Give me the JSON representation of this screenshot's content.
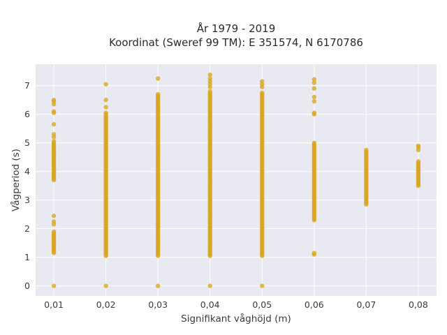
{
  "chart_data": {
    "type": "scatter",
    "title_line1": "År 1979 - 2019",
    "title_line2": "Koordinat (Sweref 99 TM): E 351574, N 6170786",
    "xlabel": "Signifikant våghöjd (m)",
    "ylabel": "Vågperiod (s)",
    "xlim": [
      0.0065,
      0.0835
    ],
    "ylim": [
      -0.35,
      7.75
    ],
    "x_ticks": [
      {
        "value": 0.01,
        "label": "0,01"
      },
      {
        "value": 0.02,
        "label": "0,02"
      },
      {
        "value": 0.03,
        "label": "0,03"
      },
      {
        "value": 0.04,
        "label": "0,04"
      },
      {
        "value": 0.05,
        "label": "0,05"
      },
      {
        "value": 0.06,
        "label": "0,06"
      },
      {
        "value": 0.07,
        "label": "0,07"
      },
      {
        "value": 0.08,
        "label": "0,08"
      }
    ],
    "y_ticks": [
      {
        "value": 0,
        "label": "0"
      },
      {
        "value": 1,
        "label": "1"
      },
      {
        "value": 2,
        "label": "2"
      },
      {
        "value": 3,
        "label": "3"
      },
      {
        "value": 4,
        "label": "4"
      },
      {
        "value": 5,
        "label": "5"
      },
      {
        "value": 6,
        "label": "6"
      },
      {
        "value": 7,
        "label": "7"
      }
    ],
    "grid": true,
    "colors": {
      "marker": "#DAA520",
      "plot_background": "#E9E9F1",
      "grid": "#ffffff"
    },
    "series": [
      {
        "points": [
          {
            "x": 0.01,
            "y_ranges": [
              [
                3.7,
                5.05
              ],
              [
                1.15,
                1.9
              ]
            ],
            "y": [
              0,
              2.15,
              2.25,
              2.45,
              5.2,
              5.3,
              5.65,
              6.05,
              6.1,
              6.35,
              6.45,
              6.5
            ]
          },
          {
            "x": 0.02,
            "y_ranges": [
              [
                1.05,
                6.05
              ]
            ],
            "y": [
              0,
              6.25,
              6.5,
              7.05
            ]
          },
          {
            "x": 0.03,
            "y_ranges": [
              [
                1.05,
                6.72
              ]
            ],
            "y": [
              0,
              7.25
            ]
          },
          {
            "x": 0.04,
            "y_ranges": [
              [
                1.05,
                6.8
              ]
            ],
            "y": [
              0,
              6.95,
              7.05,
              7.15,
              7.25,
              7.38
            ]
          },
          {
            "x": 0.05,
            "y_ranges": [
              [
                1.05,
                6.75
              ]
            ],
            "y": [
              0,
              6.95,
              7.05,
              7.15
            ]
          },
          {
            "x": 0.06,
            "y_ranges": [
              [
                2.3,
                5.0
              ]
            ],
            "y": [
              1.1,
              1.15,
              6.0,
              6.05,
              6.45,
              6.6,
              6.9,
              7.1,
              7.22
            ]
          },
          {
            "x": 0.07,
            "y_ranges": [
              [
                2.85,
                4.78
              ]
            ],
            "y": []
          },
          {
            "x": 0.08,
            "y_ranges": [
              [
                3.5,
                4.35
              ]
            ],
            "y": [
              4.75,
              4.85,
              4.9
            ]
          }
        ]
      }
    ]
  }
}
